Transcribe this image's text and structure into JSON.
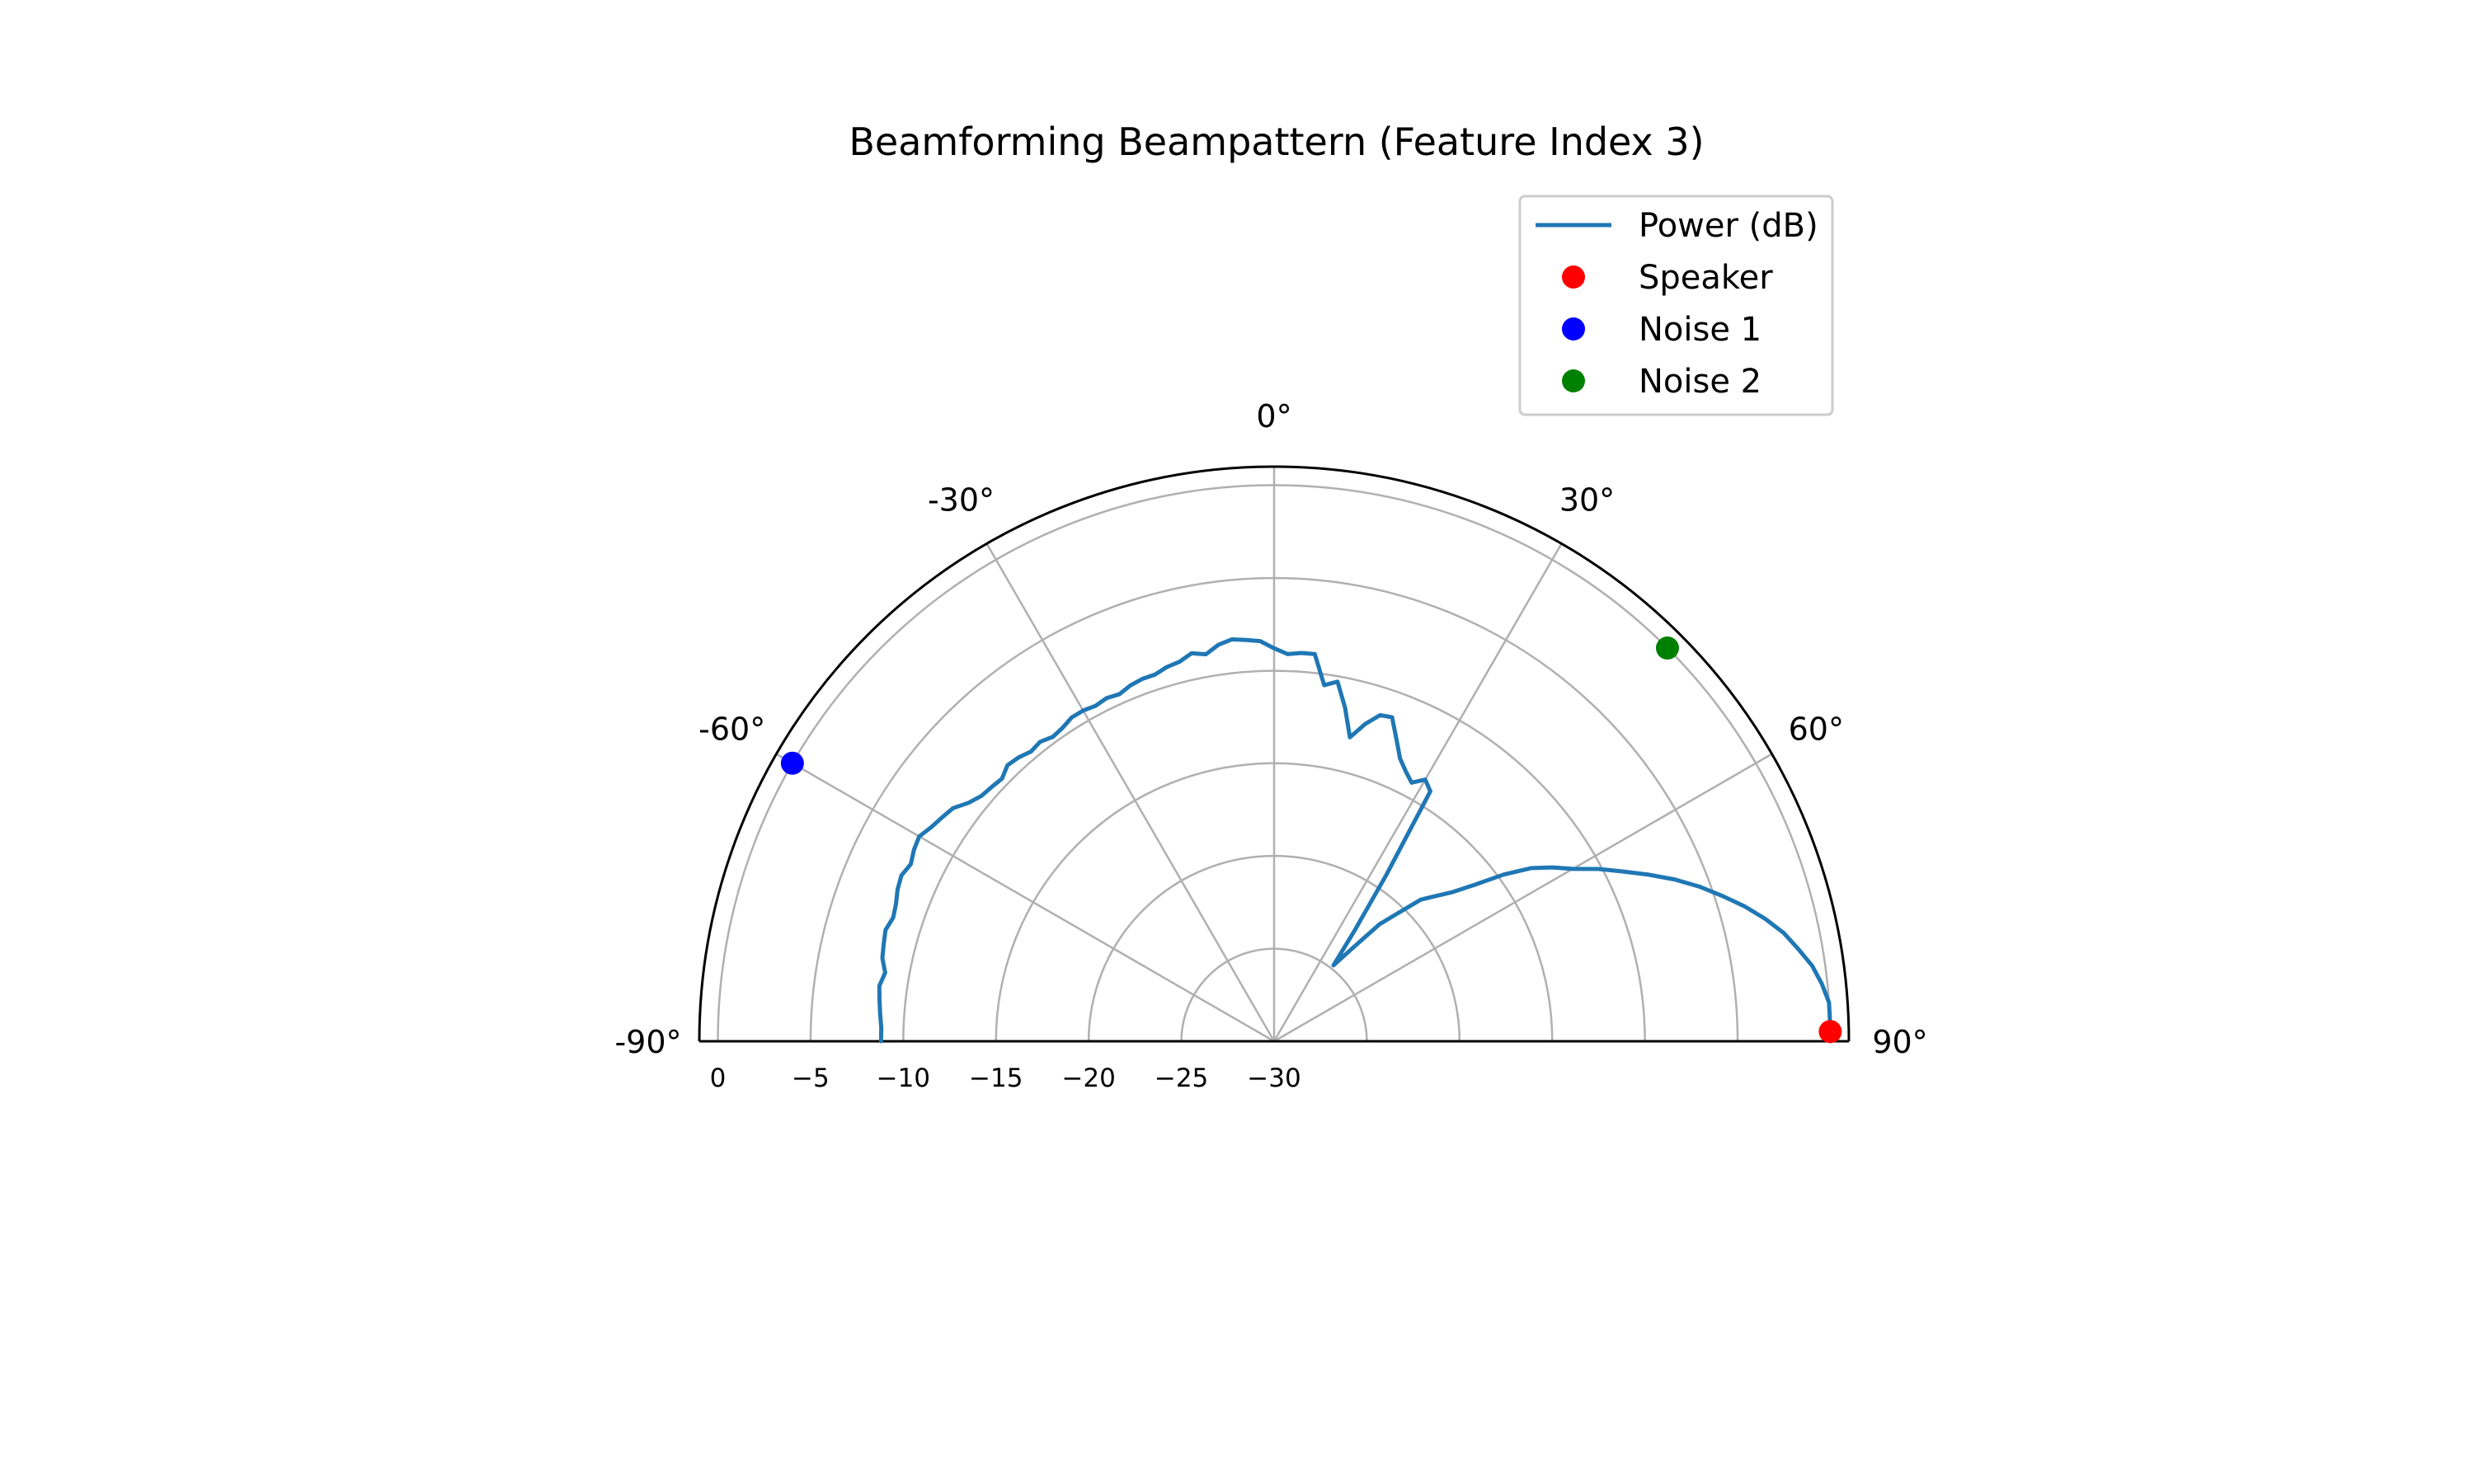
{
  "chart_data": {
    "type": "line",
    "title": "Beamforming Beampattern (Feature Index 3)",
    "projection": "polar-half",
    "theta_zero": "top",
    "theta_direction": "clockwise",
    "theta_range_deg": [
      -90,
      90
    ],
    "theta_ticks_deg": [
      -90,
      -60,
      -30,
      0,
      30,
      60,
      90
    ],
    "theta_tick_labels": [
      "-90°",
      "-60°",
      "-30°",
      "0°",
      "30°",
      "60°",
      "90°"
    ],
    "r_range_db": [
      -30,
      1
    ],
    "r_ticks_db": [
      -30,
      -25,
      -20,
      -15,
      -10,
      -5,
      0
    ],
    "r_tick_labels": [
      "−30",
      "−25",
      "−20",
      "−15",
      "−10",
      "−5",
      "0"
    ],
    "grid": true,
    "legend_position": "top-right",
    "series": [
      {
        "name": "Power (dB)",
        "kind": "line",
        "color": "#1f77b4",
        "theta_deg": [
          -90,
          -88,
          -86,
          -84,
          -82,
          -80,
          -78,
          -76,
          -74,
          -72,
          -70,
          -68,
          -66,
          -64,
          -62,
          -60,
          -58,
          -56,
          -54,
          -52,
          -50,
          -48,
          -46,
          -44,
          -42,
          -40,
          -38,
          -36,
          -34,
          -32,
          -30,
          -28,
          -26,
          -24,
          -22,
          -20,
          -18,
          -16,
          -14,
          -12,
          -10,
          -8,
          -6,
          -4,
          -2,
          0,
          2,
          4,
          6,
          8,
          10,
          12,
          14,
          16,
          18,
          20,
          22,
          24,
          26,
          28,
          30,
          32,
          34,
          36,
          38,
          40,
          42,
          44,
          46,
          48,
          50,
          52,
          54,
          56,
          58,
          60,
          62,
          64,
          66,
          68,
          70,
          72,
          74,
          76,
          78,
          80,
          82,
          84,
          86,
          88,
          90
        ],
        "r_db": [
          -8.8,
          -8.8,
          -8.7,
          -8.6,
          -8.5,
          -8.7,
          -8.4,
          -8.3,
          -8.2,
          -8.4,
          -8.3,
          -8.1,
          -8.0,
          -8.2,
          -8.0,
          -7.9,
          -8.2,
          -8.4,
          -8.6,
          -9.1,
          -9.4,
          -9.5,
          -9.6,
          -9.3,
          -9.4,
          -9.6,
          -9.5,
          -9.7,
          -9.6,
          -9.4,
          -9.4,
          -9.5,
          -9.4,
          -9.5,
          -9.3,
          -9.2,
          -9.2,
          -9.0,
          -8.9,
          -8.6,
          -8.8,
          -8.4,
          -8.2,
          -8.3,
          -8.4,
          -8.8,
          -9.1,
          -9.0,
          -9.0,
          -10.6,
          -10.3,
          -11.6,
          -13.1,
          -12.2,
          -11.5,
          -11.4,
          -12.4,
          -13.3,
          -13.8,
          -14.2,
          -13.7,
          -14.1,
          -19.2,
          -22.6,
          -24.8,
          -23.5,
          -21.5,
          -20.4,
          -19.0,
          -18.3,
          -17.5,
          -16.3,
          -14.7,
          -13.3,
          -12.3,
          -11.4,
          -10.2,
          -9.1,
          -7.9,
          -6.7,
          -5.6,
          -4.6,
          -3.6,
          -2.7,
          -1.9,
          -1.3,
          -0.7,
          -0.3,
          0,
          0,
          0
        ]
      },
      {
        "name": "Speaker",
        "kind": "marker",
        "color": "#ff0000",
        "theta_deg": [
          89
        ],
        "r_db": [
          0
        ]
      },
      {
        "name": "Noise 1",
        "kind": "marker",
        "color": "#0000ff",
        "theta_deg": [
          -60
        ],
        "r_db": [
          0
        ]
      },
      {
        "name": "Noise 2",
        "kind": "marker",
        "color": "#008000",
        "theta_deg": [
          45
        ],
        "r_db": [
          0
        ]
      }
    ]
  }
}
